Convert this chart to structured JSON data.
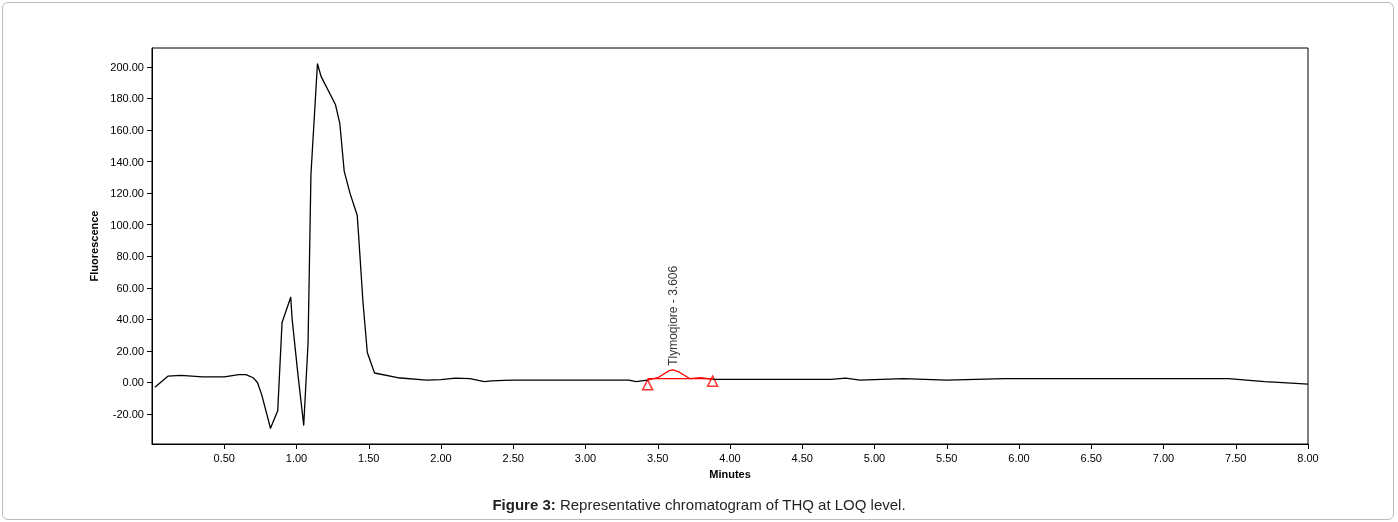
{
  "chart_data": {
    "type": "line",
    "title": "Figure 3: Representative chromatogram of THQ at LOQ level.",
    "xlabel": "Minutes",
    "ylabel": "Fluorescence",
    "xlim": [
      0,
      8.0
    ],
    "ylim": [
      -39,
      212
    ],
    "xticks": [
      {
        "value": 0.5,
        "label": "0.50"
      },
      {
        "value": 1,
        "label": "1.00"
      },
      {
        "value": 1.5,
        "label": "1.50"
      },
      {
        "value": 2,
        "label": "2.00"
      },
      {
        "value": 2.5,
        "label": "2.50"
      },
      {
        "value": 3,
        "label": "3.00"
      },
      {
        "value": 3.5,
        "label": "3.50"
      },
      {
        "value": 4,
        "label": "4.00"
      },
      {
        "value": 4.5,
        "label": "4.50"
      },
      {
        "value": 5,
        "label": "5.00"
      },
      {
        "value": 5.5,
        "label": "5.50"
      },
      {
        "value": 6,
        "label": "6.00"
      },
      {
        "value": 6.5,
        "label": "6.50"
      },
      {
        "value": 7,
        "label": "7.00"
      },
      {
        "value": 7.5,
        "label": "7.50"
      },
      {
        "value": 8,
        "label": "8.00"
      }
    ],
    "yticks": [
      {
        "value": -20,
        "label": "-20.00"
      },
      {
        "value": 0,
        "label": "0.00"
      },
      {
        "value": 20,
        "label": "20.00"
      },
      {
        "value": 40,
        "label": "40.00"
      },
      {
        "value": 60,
        "label": "60.00"
      },
      {
        "value": 80,
        "label": "80.00"
      },
      {
        "value": 100,
        "label": "100.00"
      },
      {
        "value": 120,
        "label": "120.00"
      },
      {
        "value": 140,
        "label": "140.00"
      },
      {
        "value": 160,
        "label": "160.00"
      },
      {
        "value": 180,
        "label": "180.00"
      },
      {
        "value": 200,
        "label": "200.00"
      }
    ],
    "grid": false,
    "series": [
      {
        "color": "#000000",
        "marker": "none",
        "x": [
          0.02,
          0.11,
          0.2,
          0.35,
          0.5,
          0.6,
          0.65,
          0.7,
          0.73,
          0.76,
          0.82,
          0.87,
          0.9,
          0.96,
          0.97,
          1.01,
          1.05,
          1.08,
          1.1,
          1.145,
          1.17,
          1.27,
          1.3,
          1.33,
          1.37,
          1.42,
          1.43,
          1.46,
          1.49,
          1.54,
          1.7,
          1.9,
          2.0,
          2.1,
          2.2,
          2.3,
          2.35,
          2.5,
          3.3,
          3.35,
          3.43,
          null,
          3.88,
          4.7,
          4.8,
          4.9,
          5.2,
          5.5,
          5.9,
          7.45,
          7.7,
          8.0
        ],
        "values": [
          -3,
          4,
          4.5,
          3.5,
          3.5,
          5,
          5,
          3,
          0,
          -8,
          -29,
          -18,
          38,
          54,
          40,
          5,
          -27,
          25,
          132,
          202,
          194,
          176,
          164,
          134,
          120,
          106,
          93,
          51,
          19,
          6,
          3,
          1.5,
          1.8,
          2.8,
          2.5,
          0.5,
          1,
          1.5,
          1.5,
          0.5,
          1.5,
          null,
          2,
          2,
          2.8,
          1.5,
          2.5,
          1.5,
          2.5,
          2.5,
          0.5,
          -1
        ]
      },
      {
        "color": "#ff0000",
        "marker": "none",
        "x": [
          3.43,
          3.5,
          3.58,
          3.606,
          3.65,
          3.72,
          3.8,
          3.88
        ],
        "values": [
          1.5,
          3,
          7.5,
          8,
          6.5,
          2.5,
          3,
          2
        ]
      },
      {
        "color": "#ff0000",
        "marker": "none",
        "x": [
          3.43,
          3.88
        ],
        "values": [
          2.5,
          2.5
        ]
      },
      {
        "type": "scatter",
        "color": "#ff0000",
        "marker": "triangle",
        "x": [
          3.43,
          3.88
        ],
        "values": [
          -1.5,
          0.8
        ]
      }
    ],
    "annotations": [
      {
        "text": "Tlymoqiore - 3.606",
        "x": 3.606,
        "y": 8
      }
    ]
  }
}
